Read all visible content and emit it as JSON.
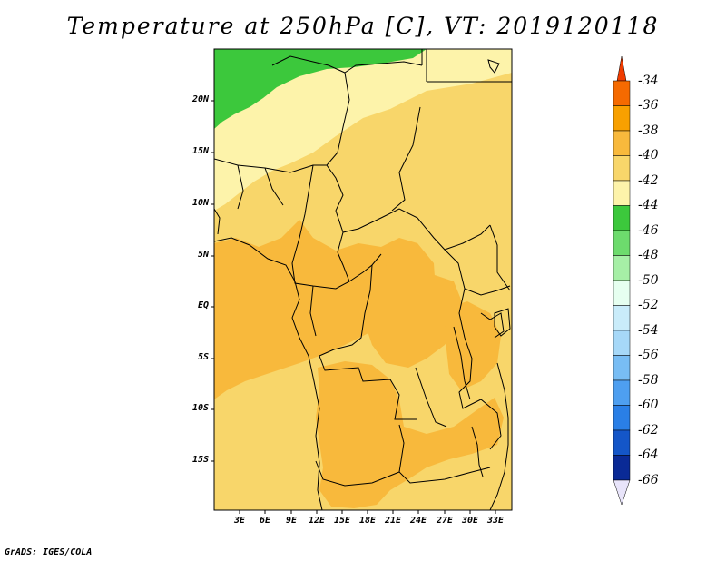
{
  "title": "Temperature at 250hPa [C], VT: 2019120118",
  "credit": "GrADS: IGES/COLA",
  "lat_labels": [
    "20N",
    "15N",
    "10N",
    "5N",
    "EQ",
    "5S",
    "10S",
    "15S"
  ],
  "lon_labels": [
    "3E",
    "6E",
    "9E",
    "12E",
    "15E",
    "18E",
    "21E",
    "24E",
    "27E",
    "30E",
    "33E"
  ],
  "colorbar": {
    "labels": [
      "-34",
      "-36",
      "-38",
      "-40",
      "-42",
      "-44",
      "-46",
      "-48",
      "-50",
      "-52",
      "-54",
      "-56",
      "-58",
      "-60",
      "-62",
      "-64",
      "-66"
    ],
    "colors": {
      "top_arrow": "#f03c00",
      "-34_-36": "#f56a00",
      "-36_-38": "#f8a000",
      "-38_-40": "#f8b93c",
      "-40_-42": "#f8d66a",
      "-42_-44": "#fdf3aa",
      "-44_-46": "#3cc83c",
      "-46_-48": "#6ddb6d",
      "-48_-50": "#a6efa6",
      "-50_-52": "#e6fff0",
      "-52_-54": "#c9ecfa",
      "-54_-56": "#a6d8f8",
      "-56_-58": "#78bdf4",
      "-58_-60": "#4e9ff0",
      "-60_-62": "#2a7fe6",
      "-62_-64": "#1456c8",
      "-64_-66": "#0a2a96",
      "bottom_arrow": "#e8e4fa"
    }
  },
  "map_colors": {
    "band_38_40": "#f8b93c",
    "band_40_42": "#f8d66a",
    "band_42_44": "#fdf3aa",
    "band_44_46": "#3cc83c"
  }
}
